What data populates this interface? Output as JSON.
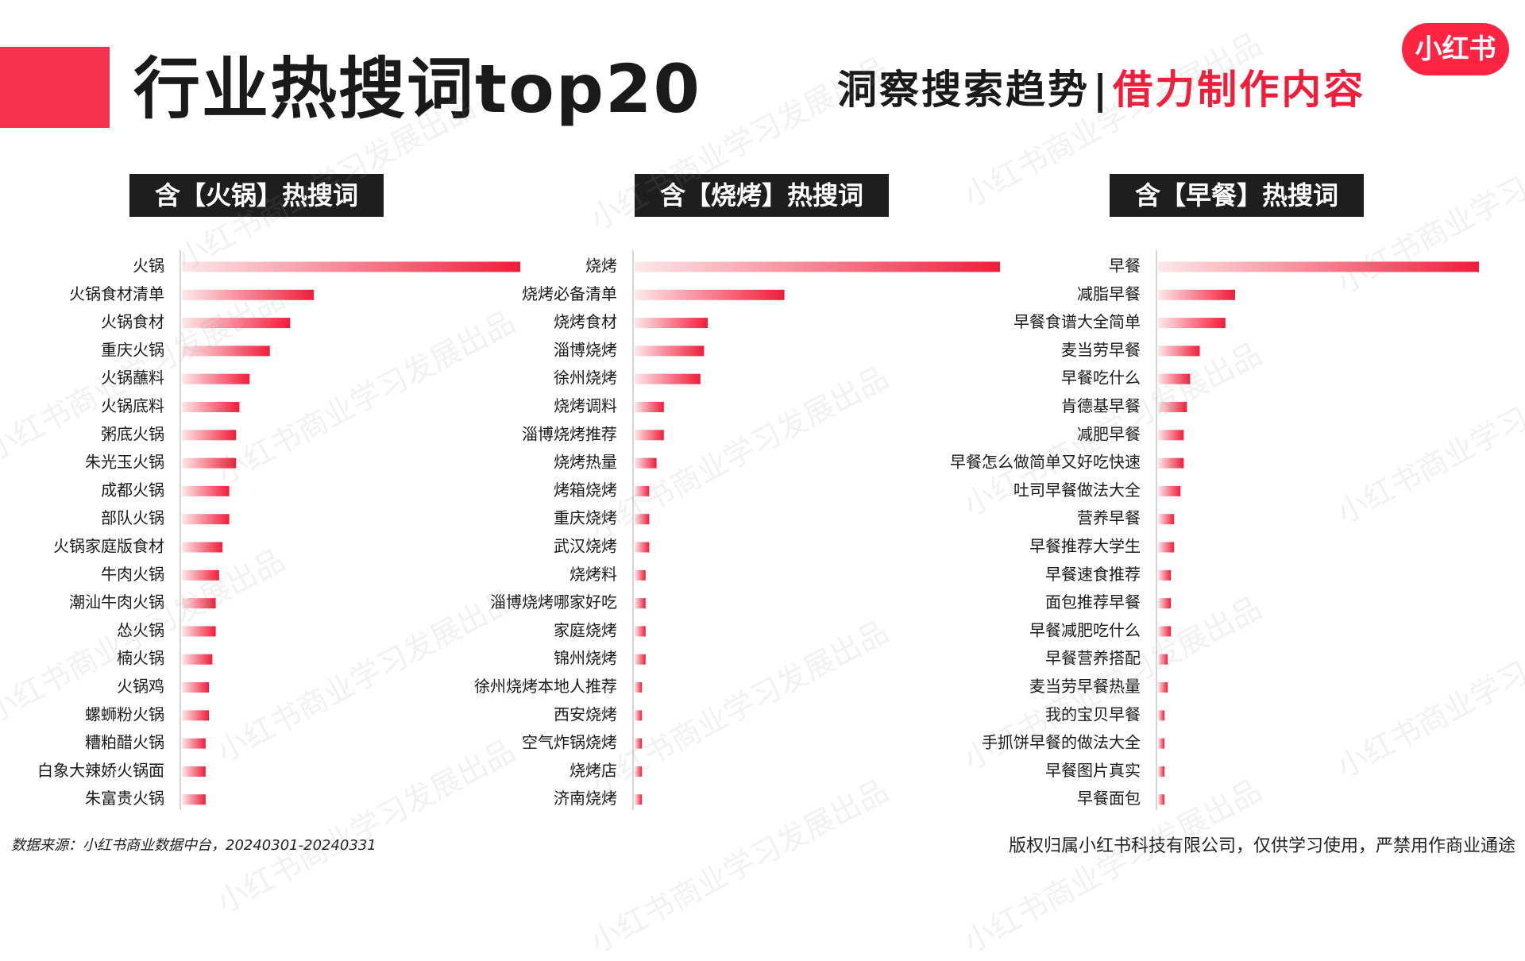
{
  "page": {
    "title": "行业热搜词top20",
    "subtitle_dark": "洞察搜索趋势",
    "subtitle_sep": "|",
    "subtitle_red": "借力制作内容",
    "logo": "小红书",
    "source": "数据来源：小红书商业数据中台，20240301-20240331",
    "copyright": "版权归属小红书科技有限公司，仅供学习使用，严禁用作商业通途",
    "watermark": "小红书商业学习发展出品"
  },
  "colors": {
    "accent": "#f11d3a",
    "bar_start": "#fde8ea",
    "bar_end": "#f11d3a",
    "header_bg": "#1e1e1e"
  },
  "chart_data": [
    {
      "type": "bar",
      "orientation": "horizontal",
      "title": "含【火锅】热搜词",
      "categories": [
        "火锅",
        "火锅食材清单",
        "火锅食材",
        "重庆火锅",
        "火锅蘸料",
        "火锅底料",
        "粥底火锅",
        "朱光玉火锅",
        "成都火锅",
        "部队火锅",
        "火锅家庭版食材",
        "牛肉火锅",
        "潮汕牛肉火锅",
        "怂火锅",
        "楠火锅",
        "火锅鸡",
        "螺蛳粉火锅",
        "糟粕醋火锅",
        "白象大辣娇火锅面",
        "朱富贵火锅"
      ],
      "values": [
        100,
        39,
        32,
        26,
        20,
        17,
        16,
        16,
        14,
        14,
        12,
        11,
        10,
        10,
        9,
        8,
        8,
        7,
        7,
        7
      ],
      "xlim": [
        0,
        100
      ],
      "grid": false,
      "axis_labels": false
    },
    {
      "type": "bar",
      "orientation": "horizontal",
      "title": "含【烧烤】热搜词",
      "categories": [
        "烧烤",
        "烧烤必备清单",
        "烧烤食材",
        "淄博烧烤",
        "徐州烧烤",
        "烧烤调料",
        "淄博烧烤推荐",
        "烧烤热量",
        "烤箱烧烤",
        "重庆烧烤",
        "武汉烧烤",
        "烧烤料",
        "淄博烧烤哪家好吃",
        "家庭烧烤",
        "锦州烧烤",
        "徐州烧烤本地人推荐",
        "西安烧烤",
        "空气炸锅烧烤",
        "烧烤店",
        "济南烧烤"
      ],
      "values": [
        100,
        41,
        20,
        19,
        18,
        8,
        8,
        6,
        4,
        4,
        4,
        3,
        3,
        3,
        3,
        2,
        2,
        2,
        2,
        2
      ],
      "xlim": [
        0,
        100
      ],
      "grid": false,
      "axis_labels": false
    },
    {
      "type": "bar",
      "orientation": "horizontal",
      "title": "含【早餐】热搜词",
      "categories": [
        "早餐",
        "减脂早餐",
        "早餐食谱大全简单",
        "麦当劳早餐",
        "早餐吃什么",
        "肯德基早餐",
        "减肥早餐",
        "早餐怎么做简单又好吃快速",
        "吐司早餐做法大全",
        "营养早餐",
        "早餐推荐大学生",
        "早餐速食推荐",
        "面包推荐早餐",
        "早餐减肥吃什么",
        "早餐营养搭配",
        "麦当劳早餐热量",
        "我的宝贝早餐",
        "手抓饼早餐的做法大全",
        "早餐图片真实",
        "早餐面包"
      ],
      "values": [
        100,
        24,
        21,
        13,
        10,
        9,
        8,
        8,
        7,
        5,
        5,
        4,
        4,
        4,
        3,
        3,
        2,
        2,
        2,
        2
      ],
      "xlim": [
        0,
        100
      ],
      "grid": false,
      "axis_labels": false
    }
  ]
}
